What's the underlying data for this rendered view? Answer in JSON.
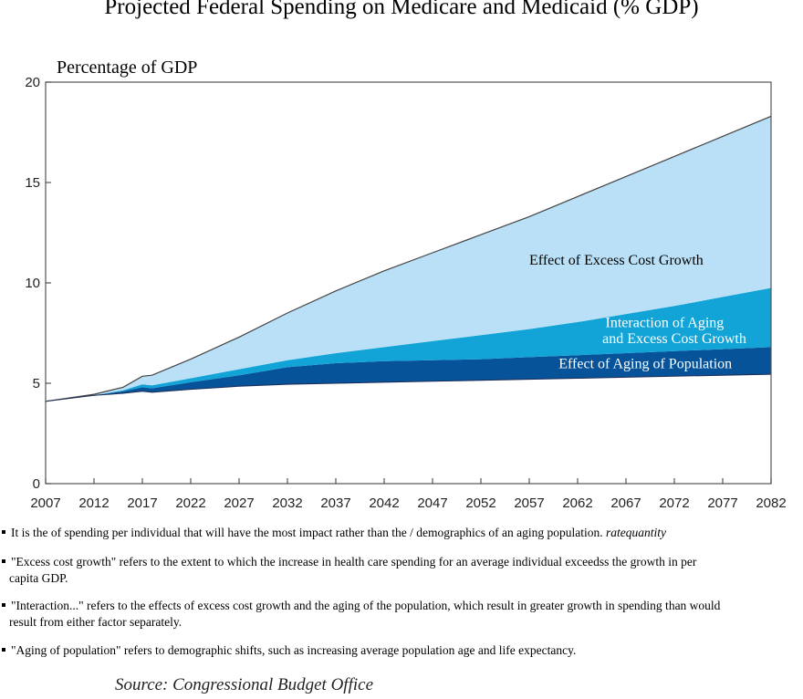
{
  "title": "Projected  Federal Spending on Medicare and Medicaid (% GDP)",
  "notes": [
    {
      "text": "It is the  of spending per individual that will have the most impact rather than the  / demographics of an aging population.",
      "italic": "ratequantity"
    },
    {
      "text": "\"Excess cost growth\" refers to the extent to which the increase in health care  spending for an average individual exceedss the growth in per",
      "text2": "capita GDP."
    },
    {
      "text": "\"Interaction...\" refers to the effects of excess cost growth and the aging of the population, which result in greater growth in spending than would",
      "text2": "result from either factor separately."
    },
    {
      "text": "\"Aging of population\" refers to demographic shifts, such as increasing average population age and life expectancy."
    }
  ],
  "source": "Source:  Congressional Budget Office",
  "colors": {
    "excess": "#b9e0f6",
    "interaction": "#12a4d6",
    "aging": "#06539a",
    "frame": "#555555"
  },
  "chart_data": {
    "type": "area",
    "ylabel": "Percentage of GDP",
    "xlabel": "",
    "xlim": [
      2007,
      2082
    ],
    "ylim": [
      0,
      20
    ],
    "x_ticks": [
      2007,
      2012,
      2017,
      2022,
      2027,
      2032,
      2037,
      2042,
      2047,
      2052,
      2057,
      2062,
      2067,
      2072,
      2077,
      2082
    ],
    "y_ticks": [
      0,
      5,
      10,
      15,
      20
    ],
    "grid": false,
    "stacked": true,
    "x": [
      2007,
      2012,
      2015,
      2017,
      2018,
      2022,
      2027,
      2032,
      2037,
      2042,
      2047,
      2052,
      2057,
      2062,
      2067,
      2072,
      2077,
      2082
    ],
    "base_total": [
      4.1,
      4.4,
      4.5,
      4.6,
      4.55,
      4.7,
      4.85,
      4.95,
      5.0,
      5.05,
      5.1,
      5.15,
      5.2,
      5.25,
      5.3,
      5.35,
      5.4,
      5.45
    ],
    "series": [
      {
        "name": "Effect of Aging of Population",
        "color": "#06539a",
        "top": [
          4.1,
          4.4,
          4.6,
          4.8,
          4.75,
          5.05,
          5.4,
          5.8,
          6.0,
          6.1,
          6.15,
          6.2,
          6.3,
          6.4,
          6.5,
          6.6,
          6.7,
          6.8
        ]
      },
      {
        "name": "Interaction of Aging and Excess Cost Growth",
        "color": "#12a4d6",
        "top": [
          4.1,
          4.4,
          4.65,
          4.95,
          4.9,
          5.25,
          5.7,
          6.15,
          6.5,
          6.8,
          7.1,
          7.4,
          7.7,
          8.05,
          8.45,
          8.85,
          9.3,
          9.75
        ]
      },
      {
        "name": "Effect of Excess Cost Growth",
        "color": "#b9e0f6",
        "top": [
          4.1,
          4.45,
          4.8,
          5.35,
          5.4,
          6.2,
          7.3,
          8.5,
          9.6,
          10.6,
          11.5,
          12.4,
          13.3,
          14.3,
          15.3,
          16.3,
          17.3,
          18.3
        ]
      }
    ],
    "annotations": [
      {
        "text": "Effect of Excess Cost Growth",
        "x": 2066,
        "y": 10.9
      },
      {
        "text": "Interaction of Aging",
        "x": 2071,
        "y": 7.8
      },
      {
        "text": "and Excess Cost Growth",
        "x": 2072,
        "y": 7.0
      },
      {
        "text": "Effect of Aging of Population",
        "x": 2069,
        "y": 5.75
      }
    ]
  }
}
